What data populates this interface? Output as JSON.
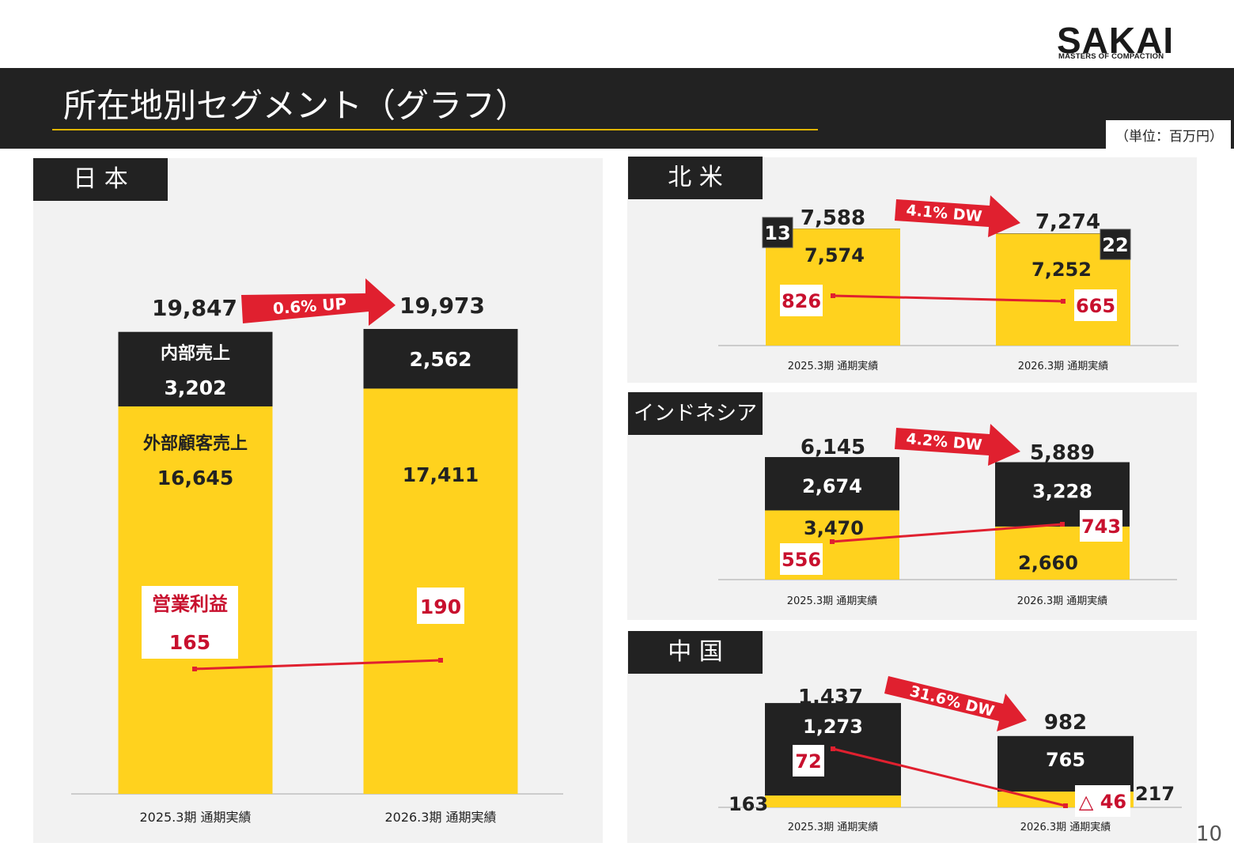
{
  "header": {
    "logo_main": "SAKAI",
    "logo_sub": "MASTERS OF COMPACTION",
    "title": "所在地別セグメント（グラフ）",
    "unit": "（単位：百万円）",
    "page_number": "10"
  },
  "colors": {
    "yellow": "#ffd21e",
    "dark": "#222222",
    "red": "#e0202f",
    "profit": "#c8102e",
    "panel": "#f2f2f2"
  },
  "chart_data": [
    {
      "region": "日 本",
      "type": "bar",
      "categories": [
        "2025.3期 通期実績",
        "2026.3期 通期実績"
      ],
      "series": [
        {
          "name": "外部顧客売上",
          "values": [
            16645,
            17411
          ]
        },
        {
          "name": "内部売上",
          "values": [
            3202,
            2562
          ]
        }
      ],
      "totals": [
        19847,
        19973
      ],
      "total_labels": [
        "19,847",
        "19,973"
      ],
      "segment_labels": {
        "外部顧客売上": [
          "16,645",
          "17,411"
        ],
        "内部売上": [
          "3,202",
          "2,562"
        ]
      },
      "series_captions": {
        "外部顧客売上": "外部顧客売上",
        "内部売上": "内部売上"
      },
      "operating_profit": {
        "name": "営業利益",
        "values": [
          165,
          190
        ],
        "labels": [
          "165",
          "190"
        ]
      },
      "change": "0.6% UP"
    },
    {
      "region": "北 米",
      "type": "bar",
      "categories": [
        "2025.3期 通期実績",
        "2026.3期 通期実績"
      ],
      "series": [
        {
          "name": "外部顧客売上",
          "values": [
            7574,
            7252
          ]
        },
        {
          "name": "内部売上",
          "values": [
            13,
            22
          ]
        }
      ],
      "totals": [
        7588,
        7274
      ],
      "total_labels": [
        "7,588",
        "7,274"
      ],
      "segment_labels": {
        "外部顧客売上": [
          "7,574",
          "7,252"
        ],
        "内部売上": [
          "13",
          "22"
        ]
      },
      "operating_profit": {
        "name": "営業利益",
        "values": [
          826,
          665
        ],
        "labels": [
          "826",
          "665"
        ]
      },
      "change": "4.1% DW"
    },
    {
      "region": "インドネシア",
      "type": "bar",
      "categories": [
        "2025.3期 通期実績",
        "2026.3期 通期実績"
      ],
      "series": [
        {
          "name": "外部顧客売上",
          "values": [
            3470,
            2660
          ]
        },
        {
          "name": "内部売上",
          "values": [
            2674,
            3228
          ]
        }
      ],
      "totals": [
        6145,
        5889
      ],
      "total_labels": [
        "6,145",
        "5,889"
      ],
      "segment_labels": {
        "外部顧客売上": [
          "3,470",
          "2,660"
        ],
        "内部売上": [
          "2,674",
          "3,228"
        ]
      },
      "operating_profit": {
        "name": "営業利益",
        "values": [
          556,
          743
        ],
        "labels": [
          "556",
          "743"
        ]
      },
      "change": "4.2% DW"
    },
    {
      "region": "中 国",
      "type": "bar",
      "categories": [
        "2025.3期 通期実績",
        "2026.3期 通期実績"
      ],
      "series": [
        {
          "name": "外部顧客売上",
          "values": [
            163,
            217
          ]
        },
        {
          "name": "内部売上",
          "values": [
            1273,
            765
          ]
        }
      ],
      "totals": [
        1437,
        982
      ],
      "total_labels": [
        "1,437",
        "982"
      ],
      "segment_labels": {
        "外部顧客売上": [
          "163",
          "217"
        ],
        "内部売上": [
          "1,273",
          "765"
        ]
      },
      "operating_profit": {
        "name": "営業利益",
        "values": [
          72,
          -46
        ],
        "labels": [
          "72",
          "△ 46"
        ]
      },
      "change": "31.6% DW"
    }
  ]
}
